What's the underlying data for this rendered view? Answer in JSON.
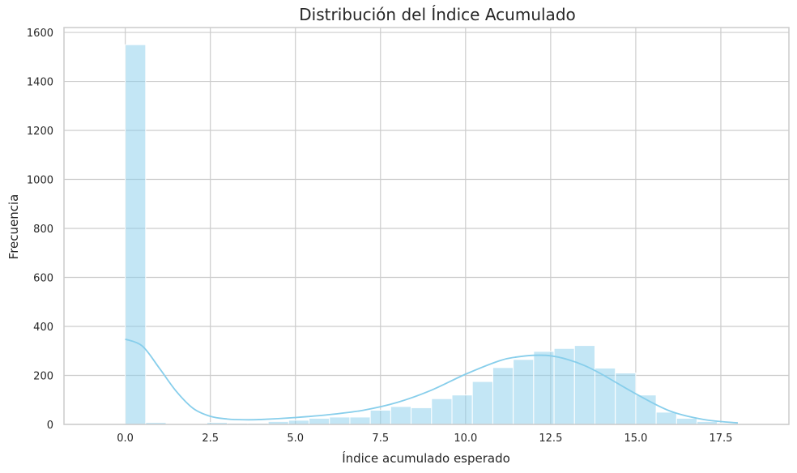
{
  "chart_data": {
    "type": "histogram",
    "title": "Distribución del Índice Acumulado",
    "xlabel": "Índice acumulado esperado",
    "ylabel": "Frecuencia",
    "xlim": [
      -1.8,
      19.5
    ],
    "ylim": [
      0,
      1620
    ],
    "x_ticks": [
      {
        "value": 0.0,
        "label": "0.0"
      },
      {
        "value": 2.5,
        "label": "2.5"
      },
      {
        "value": 5.0,
        "label": "5.0"
      },
      {
        "value": 7.5,
        "label": "7.5"
      },
      {
        "value": 10.0,
        "label": "10.0"
      },
      {
        "value": 12.5,
        "label": "12.5"
      },
      {
        "value": 15.0,
        "label": "15.0"
      },
      {
        "value": 17.5,
        "label": "17.5"
      }
    ],
    "y_ticks": [
      {
        "value": 0,
        "label": "0"
      },
      {
        "value": 200,
        "label": "200"
      },
      {
        "value": 400,
        "label": "400"
      },
      {
        "value": 600,
        "label": "600"
      },
      {
        "value": 800,
        "label": "800"
      },
      {
        "value": 1000,
        "label": "1000"
      },
      {
        "value": 1200,
        "label": "1200"
      },
      {
        "value": 1400,
        "label": "1400"
      },
      {
        "value": 1600,
        "label": "1600"
      }
    ],
    "grid": true,
    "bin_start": 0.0,
    "bin_width": 0.6,
    "counts": [
      1550,
      8,
      3,
      3,
      8,
      5,
      5,
      12,
      17,
      25,
      30,
      30,
      58,
      73,
      68,
      105,
      120,
      175,
      232,
      265,
      298,
      310,
      322,
      230,
      210,
      120,
      50,
      25,
      12,
      5
    ],
    "kde": {
      "x": [
        0.0,
        0.5,
        1.0,
        1.5,
        2.0,
        2.5,
        3.0,
        3.5,
        4.0,
        5.0,
        6.0,
        7.0,
        8.0,
        9.0,
        10.0,
        11.0,
        11.5,
        12.0,
        12.5,
        13.0,
        13.5,
        14.0,
        15.0,
        16.0,
        17.0,
        18.0
      ],
      "y": [
        348,
        320,
        230,
        135,
        65,
        33,
        22,
        19,
        20,
        28,
        40,
        58,
        90,
        140,
        205,
        260,
        275,
        282,
        280,
        265,
        240,
        205,
        125,
        55,
        20,
        6
      ]
    },
    "color": "#87ceeb"
  }
}
